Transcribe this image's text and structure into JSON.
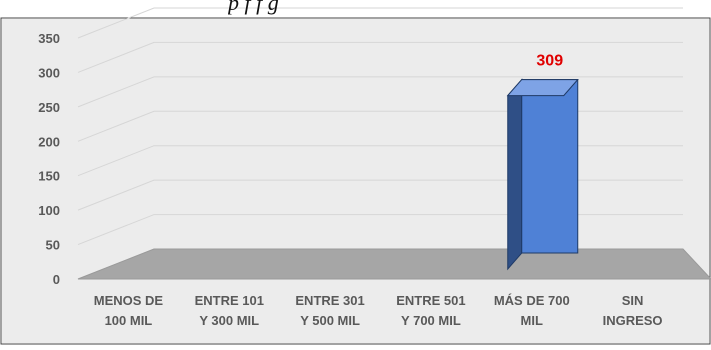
{
  "header": {
    "title_fragment": "p                              f f        g"
  },
  "chart_data": {
    "type": "bar",
    "title": "",
    "xlabel": "",
    "ylabel": "",
    "categories": [
      [
        "MENOS DE",
        "100 MIL"
      ],
      [
        "ENTRE 101",
        "Y 300 MIL"
      ],
      [
        "ENTRE 301",
        "Y 500 MIL"
      ],
      [
        "ENTRE 501",
        "Y 700 MIL"
      ],
      [
        "MÁS DE 700",
        "MIL"
      ],
      [
        "SIN",
        "INGRESO"
      ]
    ],
    "values": [
      0,
      0,
      0,
      0,
      309,
      0
    ],
    "data_labels": [
      "",
      "",
      "",
      "",
      "309",
      ""
    ],
    "ylim": [
      0,
      350
    ],
    "yticks": [
      0,
      50,
      100,
      150,
      200,
      250,
      300,
      350
    ],
    "grid": true,
    "legend": "none",
    "colors": {
      "bar_front": "#4f81d6",
      "bar_side": "#2f4f86",
      "bar_top": "#7ea3e6",
      "bar_edge": "#1f3a66",
      "floor": "#a6a6a6",
      "background": "#ececec",
      "label_value": "#e00000",
      "tick_text": "#595959",
      "gridline": "#d6d6d6"
    }
  }
}
